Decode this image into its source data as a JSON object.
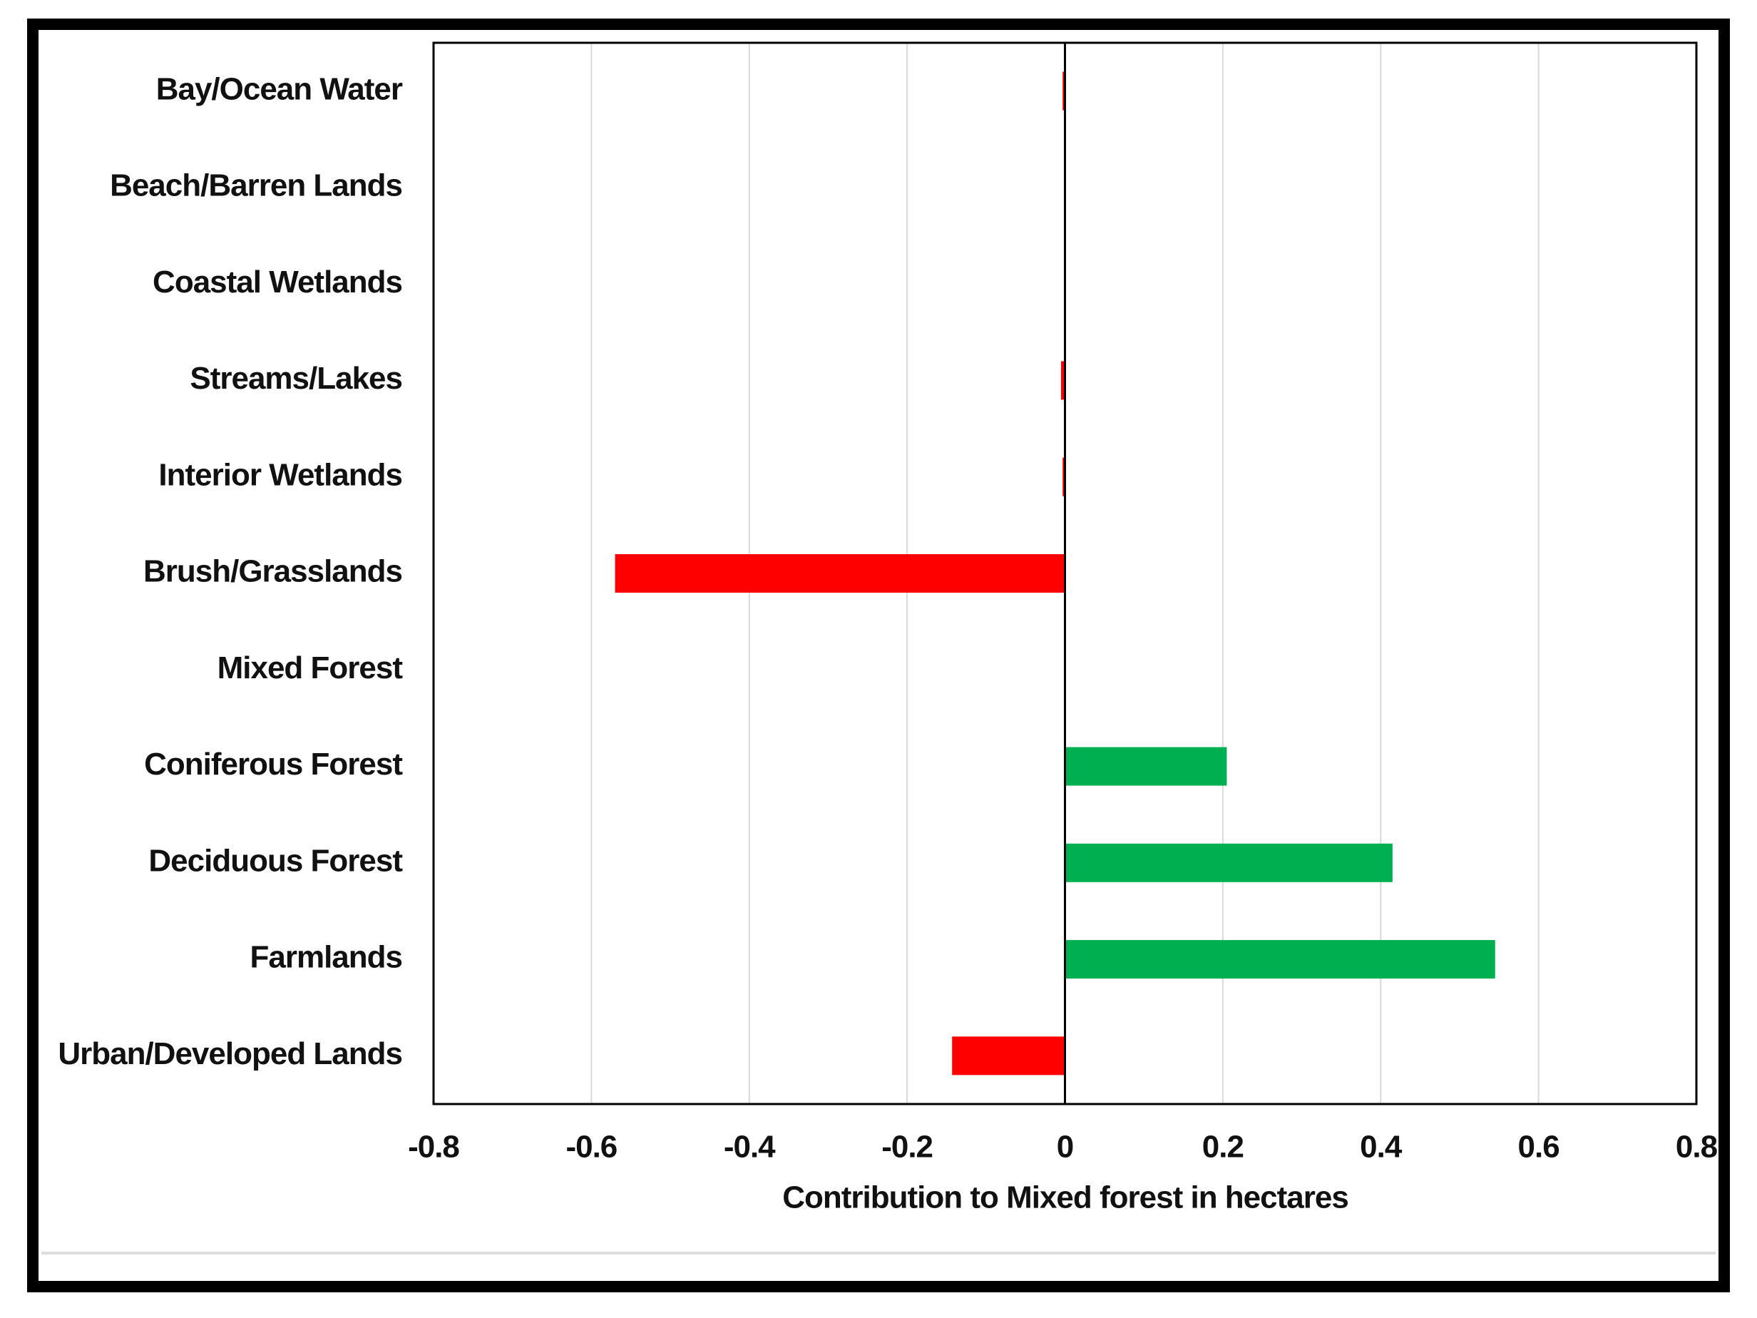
{
  "chart_data": {
    "type": "hbar",
    "x_label": "Contribution to Mixed forest in hectares",
    "categories": [
      "Bay/Ocean Water",
      "Beach/Barren Lands",
      "Coastal Wetlands",
      "Streams/Lakes",
      "Interior Wetlands",
      "Brush/Grasslands",
      "Mixed Forest",
      "Coniferous Forest",
      "Deciduous Forest",
      "Farmlands",
      "Urban/Developed Lands"
    ],
    "values": [
      -0.003,
      0,
      0,
      -0.005,
      -0.003,
      -0.57,
      0,
      0.205,
      0.415,
      0.545,
      -0.143
    ],
    "colors": [
      "#ff0000",
      "#ff0000",
      "#ff0000",
      "#ff0000",
      "#ff0000",
      "#ff0000",
      "#00b050",
      "#00b050",
      "#00b050",
      "#00b050",
      "#ff0000"
    ],
    "xlim": [
      -0.8,
      0.8
    ],
    "xticks": [
      -0.8,
      -0.6,
      -0.4,
      -0.2,
      0,
      0.2,
      0.4,
      0.6,
      0.8
    ],
    "grid": true
  }
}
